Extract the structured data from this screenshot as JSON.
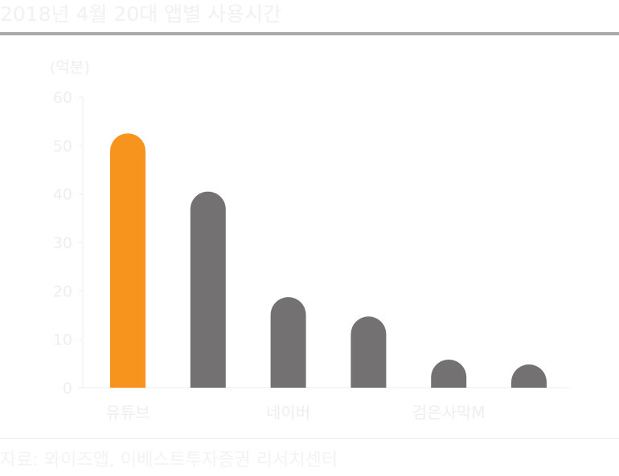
{
  "title": "2018년 4월 20대 앱별 사용시간",
  "source": "자료: 와이즈앱, 이베스트투자증권 리서치센터",
  "colors": {
    "highlight": "#F7941D",
    "default": "#737171",
    "axis": "#eeeeee",
    "text": "#eeeeee"
  },
  "chart_data": {
    "type": "bar",
    "title": "2018년 4월 20대 앱별 사용시간",
    "ylabel": "(억분)",
    "xlabel": "",
    "ylim": [
      0,
      60
    ],
    "yticks": [
      0,
      10,
      20,
      30,
      40,
      50,
      60
    ],
    "grid": false,
    "legend": "none",
    "categories": [
      "유튜브",
      "",
      "네이버",
      "",
      "검은사막M",
      ""
    ],
    "values": [
      52.5,
      40.5,
      18.7,
      14.7,
      5.8,
      4.8
    ],
    "highlight_index": 0
  }
}
